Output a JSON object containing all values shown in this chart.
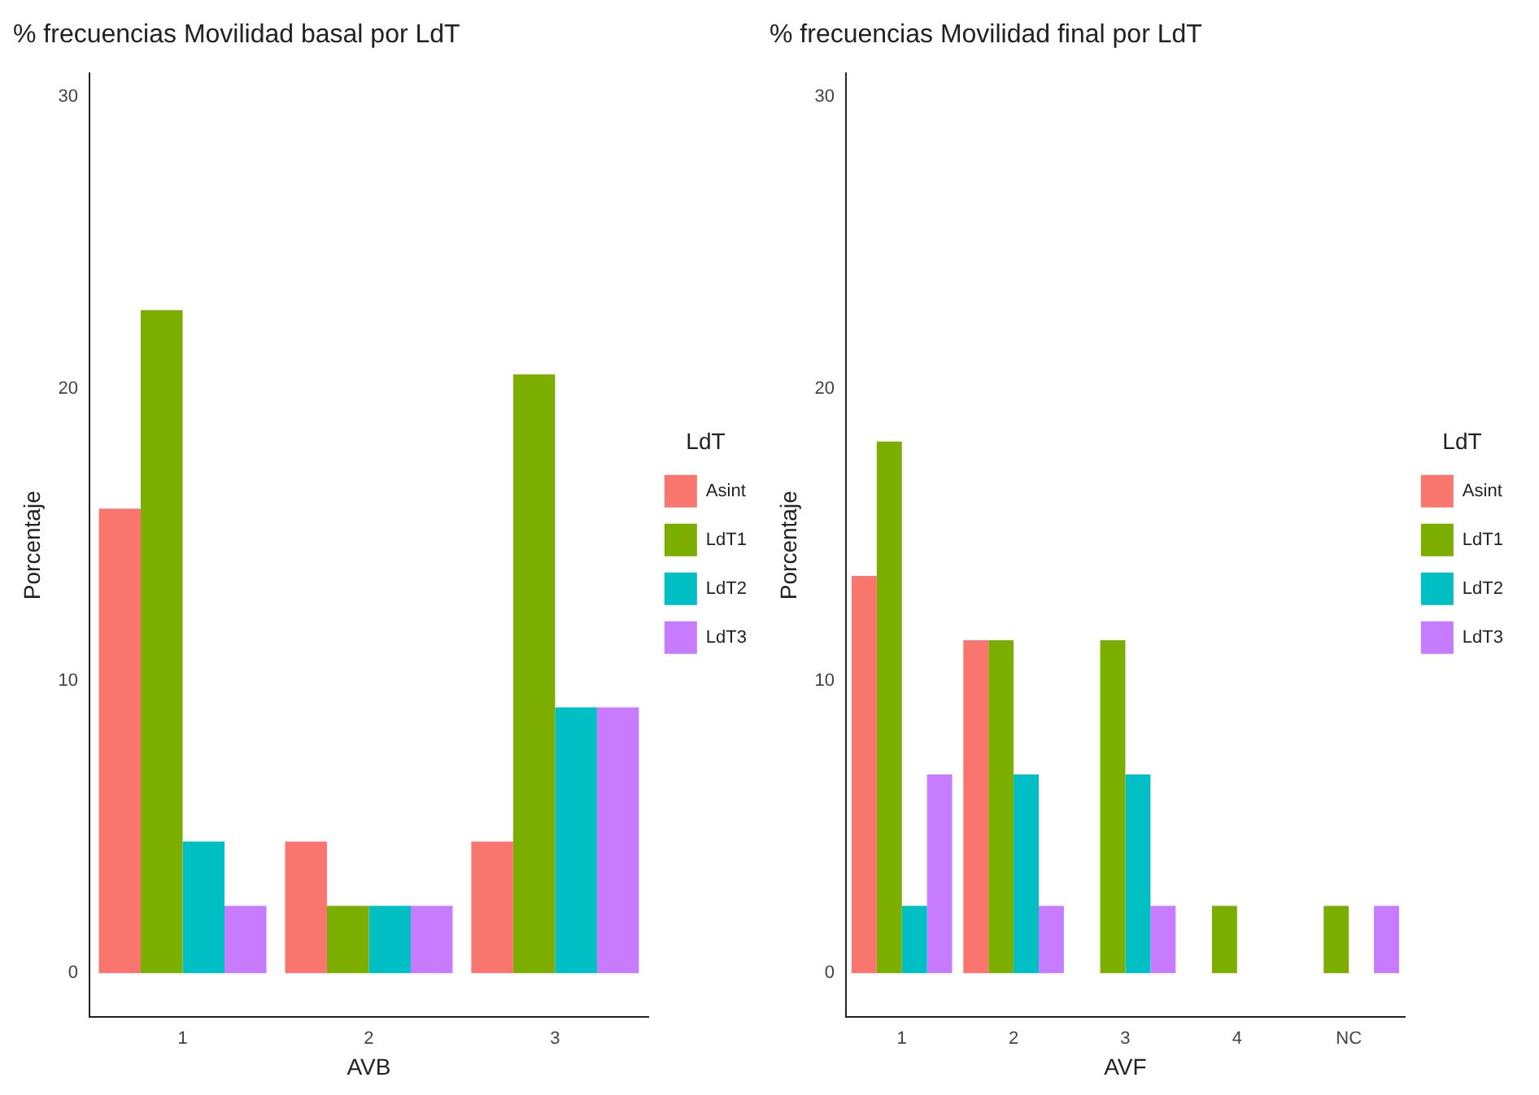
{
  "chart_data": [
    {
      "type": "bar",
      "title": "% frecuencias Movilidad basal por LdT",
      "xlabel": "AVB",
      "ylabel": "Porcentaje",
      "legend_title": "LdT",
      "legend": "right",
      "grid": false,
      "categories": [
        "1",
        "2",
        "3"
      ],
      "ylim": [
        -1.5,
        30.8
      ],
      "yticks": [
        0,
        10,
        20,
        30
      ],
      "series": [
        {
          "name": "Asint",
          "color": "#f8766d",
          "values": [
            15.9,
            4.5,
            4.5
          ]
        },
        {
          "name": "LdT1",
          "color": "#7cae00",
          "values": [
            22.7,
            2.3,
            20.5
          ]
        },
        {
          "name": "LdT2",
          "color": "#00bfc4",
          "values": [
            4.5,
            2.3,
            9.1
          ]
        },
        {
          "name": "LdT3",
          "color": "#c77cff",
          "values": [
            2.3,
            2.3,
            9.1
          ]
        }
      ]
    },
    {
      "type": "bar",
      "title": "% frecuencias Movilidad final por LdT",
      "xlabel": "AVF",
      "ylabel": "Porcentaje",
      "legend_title": "LdT",
      "legend": "right",
      "grid": false,
      "categories": [
        "1",
        "2",
        "3",
        "4",
        "NC"
      ],
      "ylim": [
        -1.5,
        30.8
      ],
      "yticks": [
        0,
        10,
        20,
        30
      ],
      "series": [
        {
          "name": "Asint",
          "color": "#f8766d",
          "values": [
            13.6,
            11.4,
            0,
            0,
            0
          ]
        },
        {
          "name": "LdT1",
          "color": "#7cae00",
          "values": [
            18.2,
            11.4,
            11.4,
            2.3,
            2.3
          ]
        },
        {
          "name": "LdT2",
          "color": "#00bfc4",
          "values": [
            2.3,
            6.8,
            6.8,
            0,
            0
          ]
        },
        {
          "name": "LdT3",
          "color": "#c77cff",
          "values": [
            6.8,
            2.3,
            2.3,
            0,
            2.3
          ]
        }
      ]
    }
  ]
}
